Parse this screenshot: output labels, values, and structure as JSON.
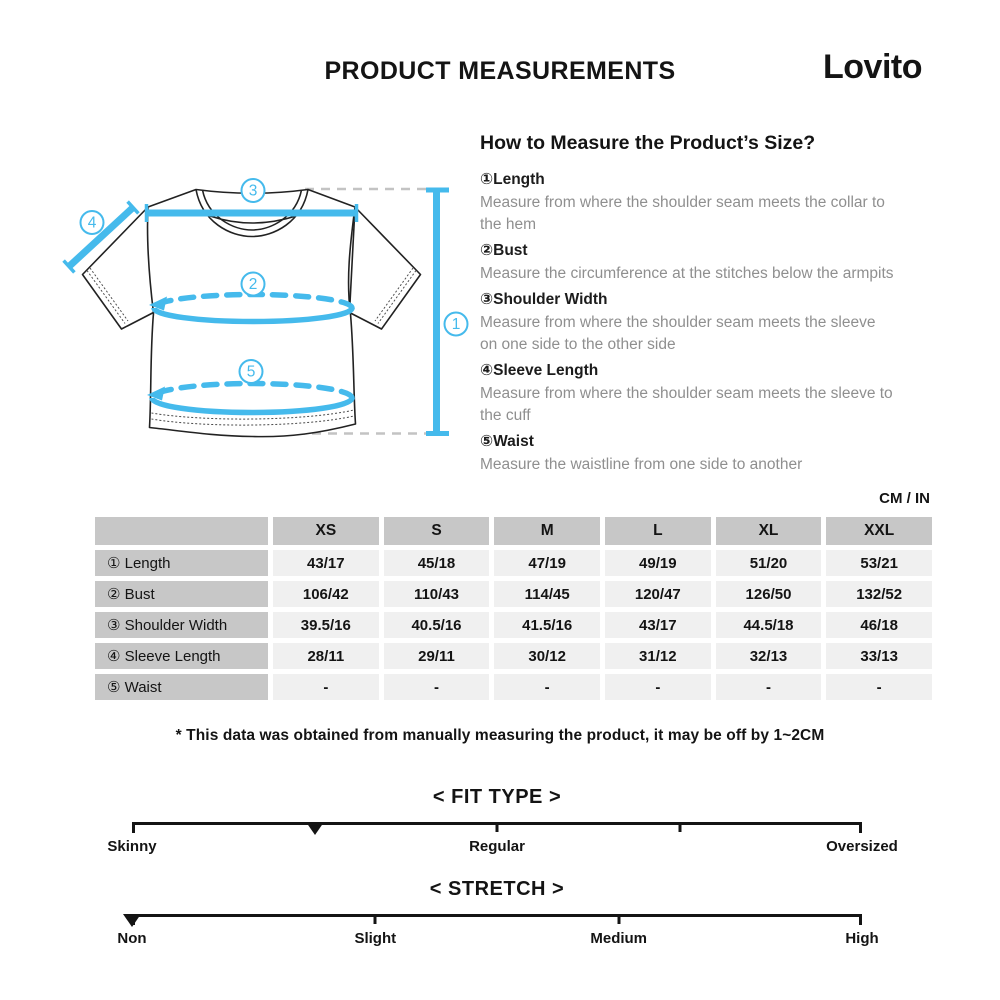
{
  "header": {
    "title": "PRODUCT MEASUREMENTS",
    "brand": "Lovito"
  },
  "how_to": {
    "heading": "How to Measure the Product’s Size?",
    "items": [
      {
        "label": "①Length",
        "lines": [
          "Measure from where the shoulder seam meets the collar to",
          "the hem"
        ]
      },
      {
        "label": "②Bust",
        "lines": [
          "Measure the circumference at the stitches below the armpits"
        ]
      },
      {
        "label": "③Shoulder Width",
        "lines": [
          "Measure from where the shoulder seam meets the sleeve",
          "on one side to the other side"
        ]
      },
      {
        "label": "④Sleeve Length",
        "lines": [
          "Measure from where the shoulder seam meets the sleeve to",
          "the cuff"
        ]
      },
      {
        "label": "⑤Waist",
        "lines": [
          "Measure the waistline from one side to another"
        ]
      }
    ]
  },
  "units_label": "CM / IN",
  "table": {
    "columns": [
      "XS",
      "S",
      "M",
      "L",
      "XL",
      "XXL"
    ],
    "rows": [
      {
        "label": "① Length",
        "values": [
          "43/17",
          "45/18",
          "47/19",
          "49/19",
          "51/20",
          "53/21"
        ]
      },
      {
        "label": "② Bust",
        "values": [
          "106/42",
          "110/43",
          "114/45",
          "120/47",
          "126/50",
          "132/52"
        ]
      },
      {
        "label": "③ Shoulder Width",
        "values": [
          "39.5/16",
          "40.5/16",
          "41.5/16",
          "43/17",
          "44.5/18",
          "46/18"
        ]
      },
      {
        "label": "④ Sleeve Length",
        "values": [
          "28/11",
          "29/11",
          "30/12",
          "31/12",
          "32/13",
          "33/13"
        ]
      },
      {
        "label": "⑤ Waist",
        "values": [
          "-",
          "-",
          "-",
          "-",
          "-",
          "-"
        ]
      }
    ]
  },
  "footnote": "* This data was obtained from manually measuring the product, it may be off by 1~2CM",
  "scales": [
    {
      "id": "fit-type",
      "title": "< FIT TYPE >",
      "ticks": [
        0.25,
        0.5,
        0.75
      ],
      "marker_pos": 0.25,
      "labels": [
        {
          "text": "Skinny",
          "pos": 0
        },
        {
          "text": "Regular",
          "pos": 0.5
        },
        {
          "text": "Oversized",
          "pos": 1
        }
      ]
    },
    {
      "id": "stretch",
      "title": "< STRETCH >",
      "ticks": [
        0.3333,
        0.6667
      ],
      "marker_pos": 0,
      "labels": [
        {
          "text": "Non",
          "pos": 0
        },
        {
          "text": "Slight",
          "pos": 0.3333
        },
        {
          "text": "Medium",
          "pos": 0.6667
        },
        {
          "text": "High",
          "pos": 1
        }
      ]
    }
  ],
  "diagram": {
    "callouts": [
      "1",
      "2",
      "3",
      "4",
      "5"
    ]
  },
  "colors": {
    "accent_blue": "#45BAEC",
    "ink": "#141414",
    "table_header_bg": "#c7c7c7",
    "table_cell_bg": "#f0f0f0",
    "description_text": "#8f8f8f",
    "dash_gray": "#c3c3c3"
  }
}
